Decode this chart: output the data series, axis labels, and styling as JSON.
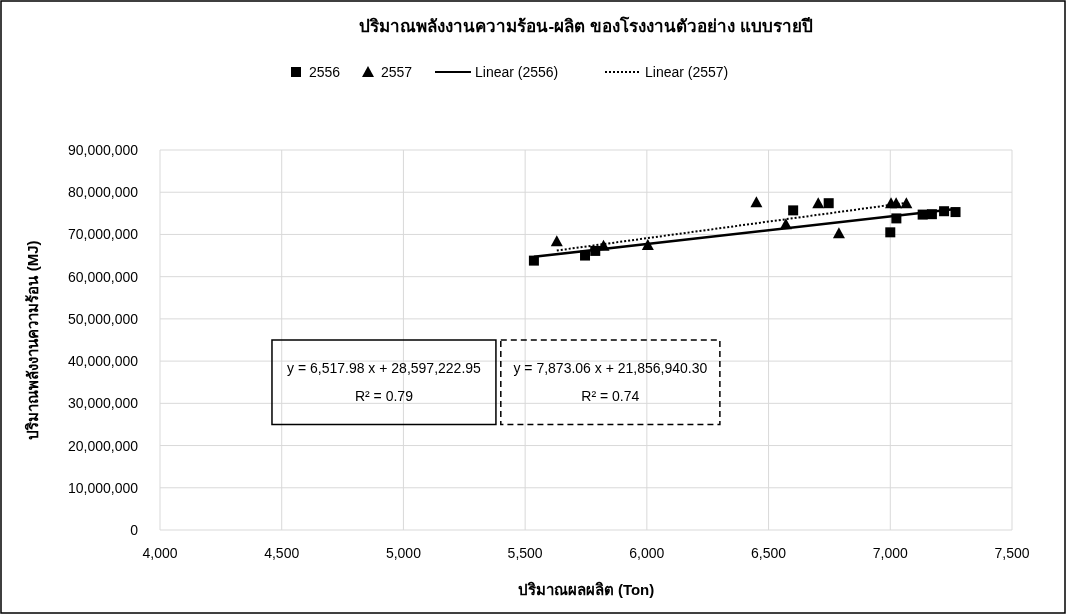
{
  "chart_data": {
    "type": "scatter",
    "title": "ปริมาณพลังงานความร้อน-ผลิต ของโรงงานตัวอย่าง แบบรายปี",
    "xlabel": "ปริมาณผลผลิต (Ton)",
    "ylabel": "ปริมาณพลังงานความร้อน (MJ)",
    "xlim": [
      4000,
      7500
    ],
    "xticks": [
      {
        "value": 4000,
        "label": "4,000"
      },
      {
        "value": 4500,
        "label": "4,500"
      },
      {
        "value": 5000,
        "label": "5,000"
      },
      {
        "value": 5500,
        "label": "5,500"
      },
      {
        "value": 6000,
        "label": "6,000"
      },
      {
        "value": 6500,
        "label": "6,500"
      },
      {
        "value": 7000,
        "label": "7,000"
      },
      {
        "value": 7500,
        "label": "7,500"
      }
    ],
    "ylim": [
      0,
      90000000
    ],
    "yticks": [
      0,
      {
        "value": 10000000,
        "label": "10,000,000"
      },
      {
        "value": 20000000,
        "label": "20,000,000"
      },
      {
        "value": 30000000,
        "label": "30,000,000"
      },
      {
        "value": 40000000,
        "label": "40,000,000"
      },
      {
        "value": 50000000,
        "label": "50,000,000"
      },
      {
        "value": 60000000,
        "label": "60,000,000"
      },
      {
        "value": 70000000,
        "label": "70,000,000"
      },
      {
        "value": 80000000,
        "label": "80,000,000"
      },
      {
        "value": 90000000,
        "label": "90,000,000"
      }
    ],
    "grid": true,
    "legend": "top",
    "series": [
      {
        "name": "2556",
        "type": "scatter",
        "marker": "square",
        "color": "#000000",
        "x": [
          5536,
          5746,
          5788,
          6601,
          6747,
          7000,
          7025,
          7133,
          7171,
          7221,
          7268
        ],
        "values": [
          63800000,
          65000000,
          66100000,
          75700000,
          77400000,
          70500000,
          73800000,
          74700000,
          74800000,
          75500000,
          75300000
        ]
      },
      {
        "name": "2557",
        "type": "scatter",
        "marker": "triangle",
        "color": "#000000",
        "x": [
          5630,
          5822,
          6004,
          6450,
          6571,
          6704,
          6789,
          7003,
          7024,
          7066
        ],
        "values": [
          68400000,
          67300000,
          67500000,
          77600000,
          72400000,
          77400000,
          70300000,
          77400000,
          77400000,
          77400000
        ]
      },
      {
        "name": "Linear (2556)",
        "type": "line",
        "line_style": "solid",
        "color": "#000000",
        "x": [
          5536,
          7268
        ],
        "values": [
          64700000,
          76000000
        ]
      },
      {
        "name": "Linear (2557)",
        "type": "line",
        "line_style": "dotted",
        "color": "#000000",
        "x": [
          5630,
          7066
        ],
        "values": [
          66200000,
          77500000
        ]
      }
    ],
    "annotations": [
      "y =  6,517.98 x +  28,597,222.95\nR² =  0.79",
      "y =  7,873.06 x +  21,856,940.30\nR² =  0.74"
    ]
  }
}
